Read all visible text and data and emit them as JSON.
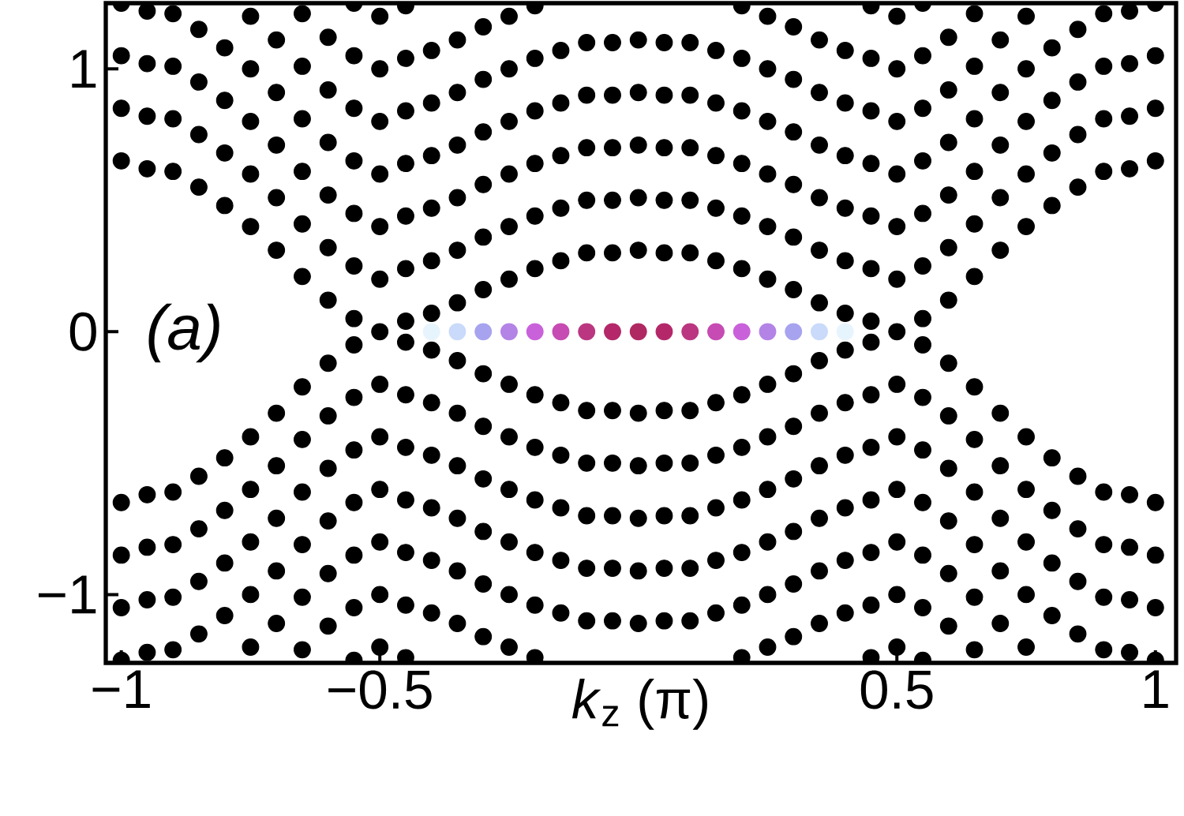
{
  "chart_data": {
    "type": "scatter",
    "xlabel": "*k*$_{z}$ (π)",
    "annotations": [
      "(a)"
    ],
    "grid": false,
    "xlim": [
      -1.03,
      1.04
    ],
    "ylim": [
      -1.26,
      1.25
    ],
    "xticks": [
      {
        "value": -1,
        "label": "−1"
      },
      {
        "value": -0.5,
        "label": "−0.5"
      },
      0.5,
      1
    ],
    "yticks": [
      {
        "value": -1,
        "label": "−1"
      },
      0,
      1
    ],
    "series": [
      {
        "color": "#000000",
        "x": [
          -1,
          -1,
          -1,
          -1,
          -1,
          -1,
          -1,
          -1
        ],
        "values": [
          0.65,
          0.85,
          1.05,
          1.25,
          -0.65,
          -0.85,
          -1.05,
          -1.25
        ]
      },
      {
        "color": "#000000",
        "x": [
          -0.95,
          -0.95,
          -0.95,
          -0.95,
          -0.95,
          -0.95,
          -0.95,
          -0.95
        ],
        "values": [
          0.62,
          0.82,
          1.02,
          1.22,
          -0.62,
          -0.82,
          -1.02,
          -1.22
        ]
      },
      {
        "color": "#000000",
        "x": [
          -0.9,
          -0.9,
          -0.9,
          -0.9,
          -0.9,
          -0.9,
          -0.9,
          -0.9
        ],
        "values": [
          0.61,
          0.81,
          1.01,
          1.21,
          -0.61,
          -0.81,
          -1.01,
          -1.21
        ]
      },
      {
        "color": "#000000",
        "x": [
          -0.85,
          -0.85,
          -0.85,
          -0.85,
          -0.85,
          -0.85,
          -0.85,
          -0.85
        ],
        "values": [
          0.55,
          0.75,
          0.95,
          1.15,
          -0.55,
          -0.75,
          -0.95,
          -1.15
        ]
      },
      {
        "color": "#000000",
        "x": [
          -0.8,
          -0.8,
          -0.8,
          -0.8,
          -0.8,
          -0.8,
          -0.8,
          -0.8
        ],
        "values": [
          0.48,
          0.68,
          0.88,
          1.08,
          -0.48,
          -0.68,
          -0.88,
          -1.08
        ]
      },
      {
        "color": "#000000",
        "x": [
          -0.75,
          -0.75,
          -0.75,
          -0.75,
          -0.75,
          -0.75,
          -0.75,
          -0.75,
          -0.75,
          -0.75
        ],
        "values": [
          0.4,
          0.6,
          0.8,
          1.0,
          1.2,
          -0.4,
          -0.6,
          -0.8,
          -1.0,
          -1.2
        ]
      },
      {
        "color": "#000000",
        "x": [
          -0.7,
          -0.7,
          -0.7,
          -0.7,
          -0.7,
          -0.7,
          -0.7,
          -0.7,
          -0.7,
          -0.7
        ],
        "values": [
          0.31,
          0.51,
          0.71,
          0.91,
          1.11,
          -0.31,
          -0.51,
          -0.71,
          -0.91,
          -1.11
        ]
      },
      {
        "color": "#000000",
        "x": [
          -0.65,
          -0.65,
          -0.65,
          -0.65,
          -0.65,
          -0.65,
          -0.65,
          -0.65,
          -0.65,
          -0.65,
          -0.65,
          -0.65
        ],
        "values": [
          0.21,
          0.41,
          0.61,
          0.81,
          1.01,
          1.21,
          -0.21,
          -0.41,
          -0.61,
          -0.81,
          -1.01,
          -1.21
        ]
      },
      {
        "color": "#000000",
        "x": [
          -0.6,
          -0.6,
          -0.6,
          -0.6,
          -0.6,
          -0.6,
          -0.6,
          -0.6,
          -0.6,
          -0.6,
          -0.6,
          -0.6
        ],
        "values": [
          0.12,
          0.32,
          0.52,
          0.72,
          0.92,
          1.12,
          -0.12,
          -0.32,
          -0.52,
          -0.72,
          -0.92,
          -1.12
        ]
      },
      {
        "color": "#000000",
        "x": [
          -0.55,
          -0.55,
          -0.55,
          -0.55,
          -0.55,
          -0.55,
          -0.55,
          -0.55,
          -0.55,
          -0.55,
          -0.55,
          -0.55,
          -0.55,
          -0.55
        ],
        "values": [
          0.05,
          0.25,
          0.45,
          0.65,
          0.85,
          1.05,
          1.25,
          -0.05,
          -0.25,
          -0.45,
          -0.65,
          -0.85,
          -1.05,
          -1.25
        ]
      },
      {
        "color": "#000000",
        "x": [
          -0.5,
          -0.5,
          -0.5,
          -0.5,
          -0.5,
          -0.5,
          -0.5,
          -0.5,
          -0.5,
          -0.5,
          -0.5,
          -0.5,
          -0.5
        ],
        "values": [
          0,
          0.2,
          0.4,
          0.6,
          0.8,
          1.0,
          1.2,
          -0.2,
          -0.4,
          -0.6,
          -0.8,
          -1.0,
          -1.2
        ]
      },
      {
        "color": "#000000",
        "x": [
          -0.45,
          -0.45,
          -0.45,
          -0.45,
          -0.45,
          -0.45,
          -0.45,
          -0.45,
          -0.45,
          -0.45,
          -0.45,
          -0.45,
          -0.45,
          -0.45
        ],
        "values": [
          0.04,
          0.24,
          0.44,
          0.64,
          0.84,
          1.04,
          1.24,
          -0.04,
          -0.24,
          -0.44,
          -0.64,
          -0.84,
          -1.04,
          -1.24
        ]
      },
      {
        "color": "#000000",
        "x": [
          -0.4,
          -0.4,
          -0.4,
          -0.4,
          -0.4,
          -0.4,
          -0.4,
          -0.4,
          -0.4,
          -0.4,
          -0.4,
          -0.4
        ],
        "values": [
          0.07,
          0.27,
          0.47,
          0.67,
          0.87,
          1.07,
          -0.07,
          -0.27,
          -0.47,
          -0.67,
          -0.87,
          -1.07
        ]
      },
      {
        "color": "#000000",
        "x": [
          -0.35,
          -0.35,
          -0.35,
          -0.35,
          -0.35,
          -0.35,
          -0.35,
          -0.35,
          -0.35,
          -0.35,
          -0.35,
          -0.35
        ],
        "values": [
          0.11,
          0.31,
          0.51,
          0.71,
          0.91,
          1.11,
          -0.11,
          -0.31,
          -0.51,
          -0.71,
          -0.91,
          -1.11
        ]
      },
      {
        "color": "#000000",
        "x": [
          -0.3,
          -0.3,
          -0.3,
          -0.3,
          -0.3,
          -0.3,
          -0.3,
          -0.3,
          -0.3,
          -0.3,
          -0.3,
          -0.3
        ],
        "values": [
          0.16,
          0.36,
          0.56,
          0.76,
          0.96,
          1.16,
          -0.16,
          -0.36,
          -0.56,
          -0.76,
          -0.96,
          -1.16
        ]
      },
      {
        "color": "#000000",
        "x": [
          -0.25,
          -0.25,
          -0.25,
          -0.25,
          -0.25,
          -0.25,
          -0.25,
          -0.25,
          -0.25,
          -0.25,
          -0.25,
          -0.25
        ],
        "values": [
          0.2,
          0.4,
          0.6,
          0.8,
          1.0,
          1.2,
          -0.2,
          -0.4,
          -0.6,
          -0.8,
          -1.0,
          -1.2
        ]
      },
      {
        "color": "#000000",
        "x": [
          -0.2,
          -0.2,
          -0.2,
          -0.2,
          -0.2,
          -0.2,
          -0.2,
          -0.2,
          -0.2,
          -0.2,
          -0.2,
          -0.2
        ],
        "values": [
          0.24,
          0.44,
          0.64,
          0.84,
          1.04,
          1.24,
          -0.24,
          -0.44,
          -0.64,
          -0.84,
          -1.04,
          -1.24
        ]
      },
      {
        "color": "#000000",
        "x": [
          -0.15,
          -0.15,
          -0.15,
          -0.15,
          -0.15,
          -0.15,
          -0.15,
          -0.15,
          -0.15,
          -0.15
        ],
        "values": [
          0.27,
          0.47,
          0.67,
          0.87,
          1.07,
          -0.27,
          -0.47,
          -0.67,
          -0.87,
          -1.07
        ]
      },
      {
        "color": "#000000",
        "x": [
          -0.1,
          -0.1,
          -0.1,
          -0.1,
          -0.1,
          -0.1,
          -0.1,
          -0.1,
          -0.1,
          -0.1
        ],
        "values": [
          0.3,
          0.5,
          0.7,
          0.9,
          1.1,
          -0.3,
          -0.5,
          -0.7,
          -0.9,
          -1.1
        ]
      },
      {
        "color": "#000000",
        "x": [
          -0.05,
          -0.05,
          -0.05,
          -0.05,
          -0.05,
          -0.05,
          -0.05,
          -0.05,
          -0.05,
          -0.05
        ],
        "values": [
          0.3,
          0.5,
          0.7,
          0.9,
          1.1,
          -0.3,
          -0.5,
          -0.7,
          -0.9,
          -1.1
        ]
      },
      {
        "color": "#000000",
        "x": [
          0,
          0,
          0,
          0,
          0,
          0,
          0,
          0,
          0,
          0
        ],
        "values": [
          0.31,
          0.51,
          0.71,
          0.91,
          1.11,
          -0.31,
          -0.51,
          -0.71,
          -0.91,
          -1.11
        ]
      },
      {
        "color": "#000000",
        "x": [
          0.05,
          0.05,
          0.05,
          0.05,
          0.05,
          0.05,
          0.05,
          0.05,
          0.05,
          0.05
        ],
        "values": [
          0.3,
          0.5,
          0.7,
          0.9,
          1.1,
          -0.3,
          -0.5,
          -0.7,
          -0.9,
          -1.1
        ]
      },
      {
        "color": "#000000",
        "x": [
          0.1,
          0.1,
          0.1,
          0.1,
          0.1,
          0.1,
          0.1,
          0.1,
          0.1,
          0.1
        ],
        "values": [
          0.3,
          0.5,
          0.7,
          0.9,
          1.1,
          -0.3,
          -0.5,
          -0.7,
          -0.9,
          -1.1
        ]
      },
      {
        "color": "#000000",
        "x": [
          0.15,
          0.15,
          0.15,
          0.15,
          0.15,
          0.15,
          0.15,
          0.15,
          0.15,
          0.15
        ],
        "values": [
          0.27,
          0.47,
          0.67,
          0.87,
          1.07,
          -0.27,
          -0.47,
          -0.67,
          -0.87,
          -1.07
        ]
      },
      {
        "color": "#000000",
        "x": [
          0.2,
          0.2,
          0.2,
          0.2,
          0.2,
          0.2,
          0.2,
          0.2,
          0.2,
          0.2,
          0.2,
          0.2
        ],
        "values": [
          0.24,
          0.44,
          0.64,
          0.84,
          1.04,
          1.24,
          -0.24,
          -0.44,
          -0.64,
          -0.84,
          -1.04,
          -1.24
        ]
      },
      {
        "color": "#000000",
        "x": [
          0.25,
          0.25,
          0.25,
          0.25,
          0.25,
          0.25,
          0.25,
          0.25,
          0.25,
          0.25,
          0.25,
          0.25
        ],
        "values": [
          0.2,
          0.4,
          0.6,
          0.8,
          1.0,
          1.2,
          -0.2,
          -0.4,
          -0.6,
          -0.8,
          -1.0,
          -1.2
        ]
      },
      {
        "color": "#000000",
        "x": [
          0.3,
          0.3,
          0.3,
          0.3,
          0.3,
          0.3,
          0.3,
          0.3,
          0.3,
          0.3,
          0.3,
          0.3
        ],
        "values": [
          0.16,
          0.36,
          0.56,
          0.76,
          0.96,
          1.16,
          -0.16,
          -0.36,
          -0.56,
          -0.76,
          -0.96,
          -1.16
        ]
      },
      {
        "color": "#000000",
        "x": [
          0.35,
          0.35,
          0.35,
          0.35,
          0.35,
          0.35,
          0.35,
          0.35,
          0.35,
          0.35,
          0.35,
          0.35
        ],
        "values": [
          0.11,
          0.31,
          0.51,
          0.71,
          0.91,
          1.11,
          -0.11,
          -0.31,
          -0.51,
          -0.71,
          -0.91,
          -1.11
        ]
      },
      {
        "color": "#000000",
        "x": [
          0.4,
          0.4,
          0.4,
          0.4,
          0.4,
          0.4,
          0.4,
          0.4,
          0.4,
          0.4,
          0.4,
          0.4
        ],
        "values": [
          0.07,
          0.27,
          0.47,
          0.67,
          0.87,
          1.07,
          -0.07,
          -0.27,
          -0.47,
          -0.67,
          -0.87,
          -1.07
        ]
      },
      {
        "color": "#000000",
        "x": [
          0.45,
          0.45,
          0.45,
          0.45,
          0.45,
          0.45,
          0.45,
          0.45,
          0.45,
          0.45,
          0.45,
          0.45,
          0.45,
          0.45
        ],
        "values": [
          0.04,
          0.24,
          0.44,
          0.64,
          0.84,
          1.04,
          1.24,
          -0.04,
          -0.24,
          -0.44,
          -0.64,
          -0.84,
          -1.04,
          -1.24
        ]
      },
      {
        "color": "#000000",
        "x": [
          0.5,
          0.5,
          0.5,
          0.5,
          0.5,
          0.5,
          0.5,
          0.5,
          0.5,
          0.5,
          0.5,
          0.5,
          0.5
        ],
        "values": [
          0,
          0.2,
          0.4,
          0.6,
          0.8,
          1.0,
          1.2,
          -0.2,
          -0.4,
          -0.6,
          -0.8,
          -1.0,
          -1.2
        ]
      },
      {
        "color": "#000000",
        "x": [
          0.55,
          0.55,
          0.55,
          0.55,
          0.55,
          0.55,
          0.55,
          0.55,
          0.55,
          0.55,
          0.55,
          0.55,
          0.55,
          0.55
        ],
        "values": [
          0.05,
          0.25,
          0.45,
          0.65,
          0.85,
          1.05,
          1.25,
          -0.05,
          -0.25,
          -0.45,
          -0.65,
          -0.85,
          -1.05,
          -1.25
        ]
      },
      {
        "color": "#000000",
        "x": [
          0.6,
          0.6,
          0.6,
          0.6,
          0.6,
          0.6,
          0.6,
          0.6,
          0.6,
          0.6,
          0.6,
          0.6
        ],
        "values": [
          0.12,
          0.32,
          0.52,
          0.72,
          0.92,
          1.12,
          -0.12,
          -0.32,
          -0.52,
          -0.72,
          -0.92,
          -1.12
        ]
      },
      {
        "color": "#000000",
        "x": [
          0.65,
          0.65,
          0.65,
          0.65,
          0.65,
          0.65,
          0.65,
          0.65,
          0.65,
          0.65,
          0.65,
          0.65
        ],
        "values": [
          0.21,
          0.41,
          0.61,
          0.81,
          1.01,
          1.21,
          -0.21,
          -0.41,
          -0.61,
          -0.81,
          -1.01,
          -1.21
        ]
      },
      {
        "color": "#000000",
        "x": [
          0.7,
          0.7,
          0.7,
          0.7,
          0.7,
          0.7,
          0.7,
          0.7,
          0.7,
          0.7
        ],
        "values": [
          0.31,
          0.51,
          0.71,
          0.91,
          1.11,
          -0.31,
          -0.51,
          -0.71,
          -0.91,
          -1.11
        ]
      },
      {
        "color": "#000000",
        "x": [
          0.75,
          0.75,
          0.75,
          0.75,
          0.75,
          0.75,
          0.75,
          0.75,
          0.75,
          0.75
        ],
        "values": [
          0.4,
          0.6,
          0.8,
          1.0,
          1.2,
          -0.4,
          -0.6,
          -0.8,
          -1.0,
          -1.2
        ]
      },
      {
        "color": "#000000",
        "x": [
          0.8,
          0.8,
          0.8,
          0.8,
          0.8,
          0.8,
          0.8,
          0.8
        ],
        "values": [
          0.48,
          0.68,
          0.88,
          1.08,
          -0.48,
          -0.68,
          -0.88,
          -1.08
        ]
      },
      {
        "color": "#000000",
        "x": [
          0.85,
          0.85,
          0.85,
          0.85,
          0.85,
          0.85,
          0.85,
          0.85
        ],
        "values": [
          0.55,
          0.75,
          0.95,
          1.15,
          -0.55,
          -0.75,
          -0.95,
          -1.15
        ]
      },
      {
        "color": "#000000",
        "x": [
          0.9,
          0.9,
          0.9,
          0.9,
          0.9,
          0.9,
          0.9,
          0.9
        ],
        "values": [
          0.61,
          0.81,
          1.01,
          1.21,
          -0.61,
          -0.81,
          -1.01,
          -1.21
        ]
      },
      {
        "color": "#000000",
        "x": [
          0.95,
          0.95,
          0.95,
          0.95,
          0.95,
          0.95,
          0.95,
          0.95
        ],
        "values": [
          0.62,
          0.82,
          1.02,
          1.22,
          -0.62,
          -0.82,
          -1.02,
          -1.22
        ]
      },
      {
        "color": "#000000",
        "x": [
          1,
          1,
          1,
          1,
          1,
          1,
          1,
          1
        ],
        "values": [
          0.65,
          0.85,
          1.05,
          1.25,
          -0.65,
          -0.85,
          -1.05,
          -1.25
        ]
      },
      {
        "x": [
          -0.4,
          -0.35,
          -0.3,
          -0.25,
          -0.2,
          -0.15,
          -0.1,
          -0.05,
          0,
          0.05,
          0.1,
          0.15,
          0.2,
          0.25,
          0.3,
          0.35,
          0.4
        ],
        "values": [
          0,
          0,
          0,
          0,
          0,
          0,
          0,
          0,
          0,
          0,
          0,
          0,
          0,
          0,
          0,
          0,
          0
        ],
        "colors": [
          "#e6f4fd",
          "#c9dafa",
          "#a7a3ef",
          "#b383e6",
          "#c962da",
          "#c64bb2",
          "#bb3680",
          "#b4286a",
          "#b02862",
          "#b4286a",
          "#bb3680",
          "#c64bb2",
          "#c962da",
          "#b383e6",
          "#a7a3ef",
          "#c9dafa",
          "#e6f4fd"
        ]
      }
    ]
  }
}
